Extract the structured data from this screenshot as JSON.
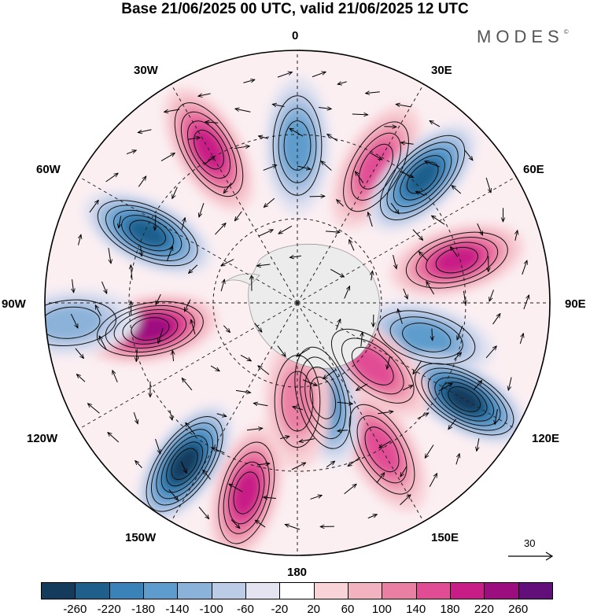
{
  "title": "Base 21/06/2025 00 UTC, valid 21/06/2025 12 UTC",
  "brand": "MODES",
  "brand_mark": "©",
  "longitude_labels": {
    "north": "0",
    "e30": "30E",
    "e60": "60E",
    "e90": "90E",
    "e120": "120E",
    "e150": "150E",
    "south": "180",
    "w150": "150W",
    "w120": "120W",
    "w90": "90W",
    "w60": "60W",
    "w30": "30W"
  },
  "reference_vector": {
    "label": "30"
  },
  "colorbar": {
    "ticks": [
      "-260",
      "-220",
      "-180",
      "-140",
      "-100",
      "-60",
      "-20",
      "20",
      "60",
      "100",
      "140",
      "180",
      "220",
      "260"
    ],
    "colors": [
      "#143a5c",
      "#1f5f8c",
      "#3a82b8",
      "#5d9ccc",
      "#8bb2d9",
      "#bccbe6",
      "#e3e3f1",
      "#ffffff",
      "#f8d3d8",
      "#f2b2c0",
      "#ea7fa4",
      "#e14d95",
      "#c81d86",
      "#9c0d80",
      "#620f7a"
    ]
  },
  "anomaly_centers": [
    {
      "sign": "positive",
      "lon_sector": "30W",
      "value": 180
    },
    {
      "sign": "negative",
      "lon_sector": "0",
      "value": -140
    },
    {
      "sign": "positive",
      "lon_sector": "30E",
      "value": 140
    },
    {
      "sign": "negative",
      "lon_sector": "45E",
      "value": -220
    },
    {
      "sign": "positive",
      "lon_sector": "75E",
      "value": 180
    },
    {
      "sign": "negative",
      "lon_sector": "105E",
      "value": -140
    },
    {
      "sign": "negative",
      "lon_sector": "120E",
      "value": -260
    },
    {
      "sign": "positive",
      "lon_sector": "130E",
      "value": 140
    },
    {
      "sign": "positive",
      "lon_sector": "150E",
      "value": 140
    },
    {
      "sign": "negative",
      "lon_sector": "165E",
      "value": -180
    },
    {
      "sign": "positive",
      "lon_sector": "180",
      "value": 100
    },
    {
      "sign": "positive",
      "lon_sector": "165W",
      "value": 180
    },
    {
      "sign": "negative",
      "lon_sector": "145W",
      "value": -260
    },
    {
      "sign": "positive",
      "lon_sector": "100W",
      "value": 220
    },
    {
      "sign": "negative",
      "lon_sector": "65W",
      "value": -220
    },
    {
      "sign": "negative",
      "lon_sector": "95W",
      "value": -100
    }
  ]
}
